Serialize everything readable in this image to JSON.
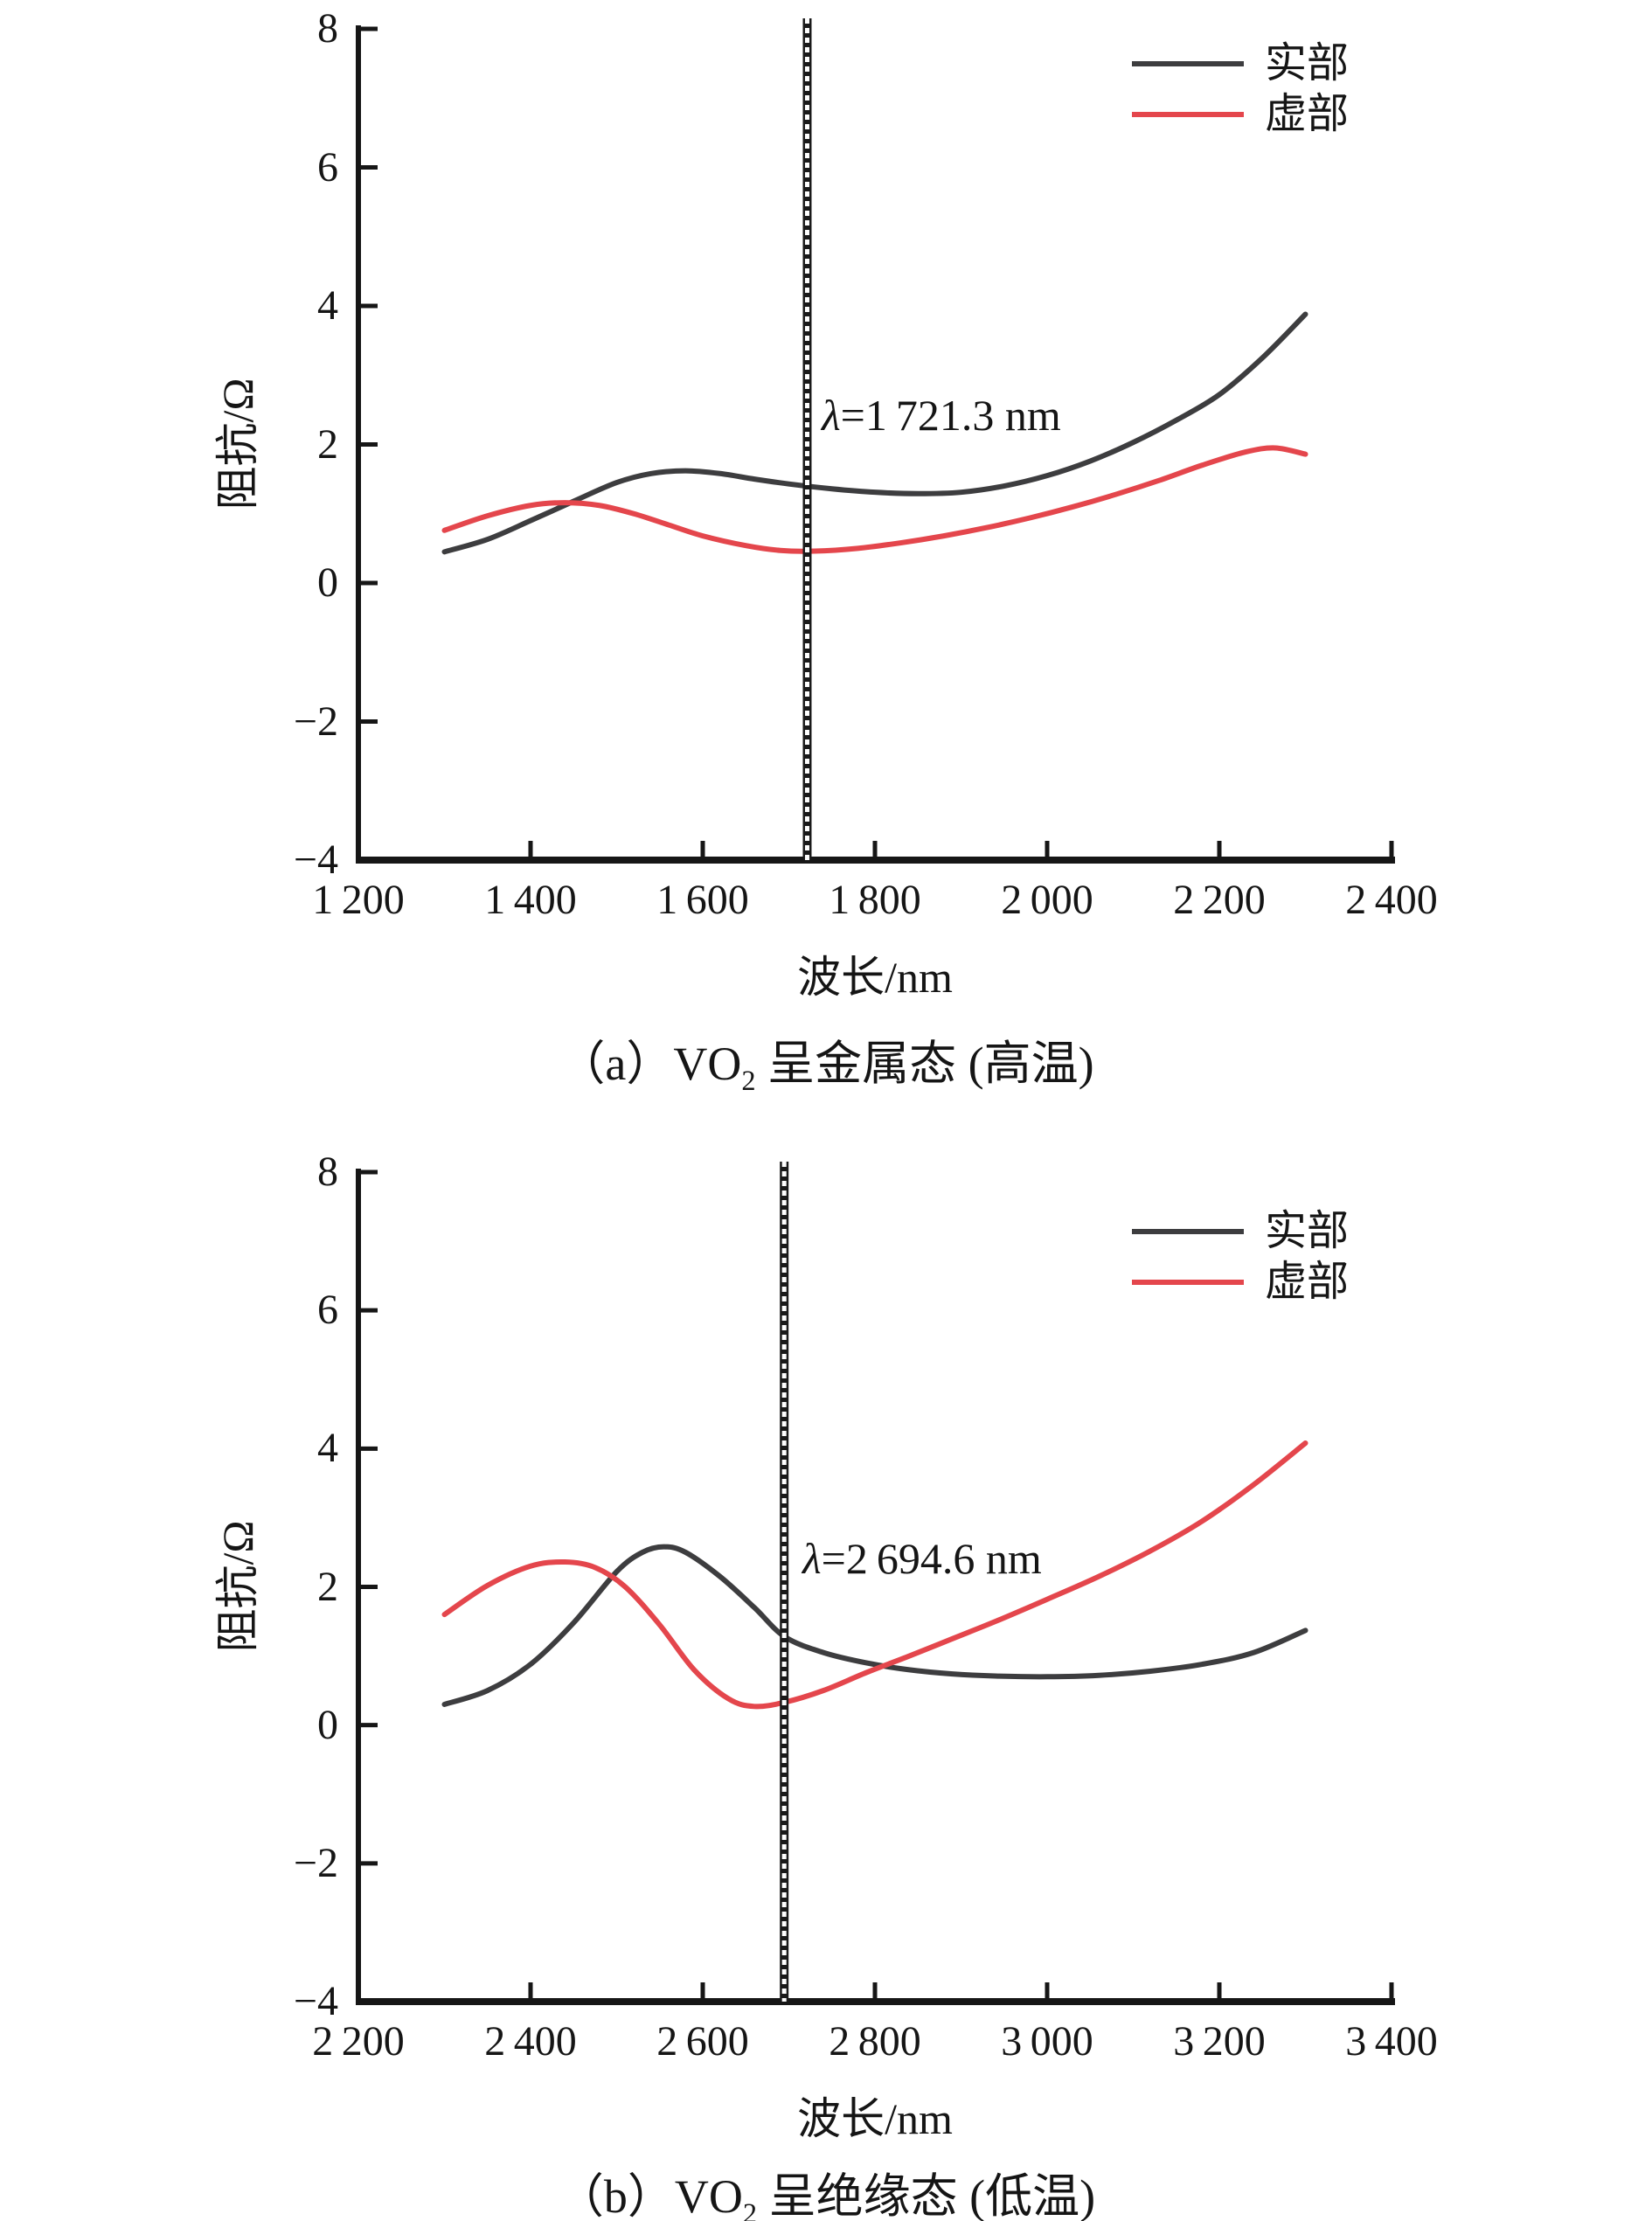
{
  "colors": {
    "real": "#3d3d3f",
    "imag": "#e4464c",
    "axis": "#161616",
    "text": "#151515",
    "marker_fill": "#1a1a1a",
    "marker_dash": "#ffffff"
  },
  "chart_data": [
    {
      "type": "line",
      "panel": "a",
      "xlabel": "波长/nm",
      "ylabel": "阻抗/Ω",
      "caption": {
        "prefix": "（a）VO",
        "sub": "2",
        "suffix": " 呈金属态 (高温)"
      },
      "legend": [
        {
          "key": "real",
          "label": "实部"
        },
        {
          "key": "imag",
          "label": "虚部"
        }
      ],
      "legend_position": "top-right",
      "grid": false,
      "axes": {
        "x_min": 1200,
        "x_max": 2400,
        "y_min": -4,
        "y_max": 8,
        "x_ticks": [
          {
            "v": 1200,
            "label": "1 200"
          },
          {
            "v": 1400,
            "label": "1 400"
          },
          {
            "v": 1600,
            "label": "1 600"
          },
          {
            "v": 1800,
            "label": "1 800"
          },
          {
            "v": 2000,
            "label": "2 000"
          },
          {
            "v": 2200,
            "label": "2 200"
          },
          {
            "v": 2400,
            "label": "2 400"
          }
        ],
        "y_ticks": [
          {
            "v": 8,
            "label": "8"
          },
          {
            "v": 6,
            "label": "6"
          },
          {
            "v": 4,
            "label": "4"
          },
          {
            "v": 2,
            "label": "2"
          },
          {
            "v": 0,
            "label": "0"
          },
          {
            "v": -2,
            "label": "−2"
          },
          {
            "v": -4,
            "label": "−4"
          }
        ]
      },
      "marker": {
        "x": 1721.3,
        "label": "λ=1 721.3 nm"
      },
      "series": [
        {
          "name": "实部",
          "color_key": "real",
          "points": [
            [
              1300,
              0.45
            ],
            [
              1350,
              0.63
            ],
            [
              1400,
              0.9
            ],
            [
              1450,
              1.18
            ],
            [
              1500,
              1.45
            ],
            [
              1540,
              1.58
            ],
            [
              1580,
              1.62
            ],
            [
              1620,
              1.58
            ],
            [
              1660,
              1.5
            ],
            [
              1700,
              1.43
            ],
            [
              1750,
              1.36
            ],
            [
              1800,
              1.31
            ],
            [
              1850,
              1.29
            ],
            [
              1900,
              1.31
            ],
            [
              1950,
              1.4
            ],
            [
              2000,
              1.55
            ],
            [
              2050,
              1.76
            ],
            [
              2100,
              2.03
            ],
            [
              2150,
              2.35
            ],
            [
              2200,
              2.72
            ],
            [
              2250,
              3.25
            ],
            [
              2300,
              3.88
            ]
          ]
        },
        {
          "name": "虚部",
          "color_key": "imag",
          "points": [
            [
              1300,
              0.76
            ],
            [
              1350,
              0.97
            ],
            [
              1400,
              1.12
            ],
            [
              1440,
              1.16
            ],
            [
              1480,
              1.12
            ],
            [
              1520,
              1.0
            ],
            [
              1560,
              0.84
            ],
            [
              1600,
              0.68
            ],
            [
              1650,
              0.54
            ],
            [
              1690,
              0.47
            ],
            [
              1730,
              0.46
            ],
            [
              1780,
              0.5
            ],
            [
              1830,
              0.58
            ],
            [
              1880,
              0.68
            ],
            [
              1930,
              0.8
            ],
            [
              1980,
              0.94
            ],
            [
              2030,
              1.1
            ],
            [
              2080,
              1.28
            ],
            [
              2130,
              1.48
            ],
            [
              2180,
              1.7
            ],
            [
              2230,
              1.89
            ],
            [
              2265,
              1.95
            ],
            [
              2300,
              1.86
            ]
          ]
        }
      ]
    },
    {
      "type": "line",
      "panel": "b",
      "xlabel": "波长/nm",
      "ylabel": "阻抗/Ω",
      "caption": {
        "prefix": "（b）VO",
        "sub": "2",
        "suffix": " 呈绝缘态 (低温)"
      },
      "legend": [
        {
          "key": "real",
          "label": "实部"
        },
        {
          "key": "imag",
          "label": "虚部"
        }
      ],
      "legend_position": "top-right",
      "grid": false,
      "axes": {
        "x_min": 2200,
        "x_max": 3400,
        "y_min": -4,
        "y_max": 8,
        "x_ticks": [
          {
            "v": 2200,
            "label": "2 200"
          },
          {
            "v": 2400,
            "label": "2 400"
          },
          {
            "v": 2600,
            "label": "2 600"
          },
          {
            "v": 2800,
            "label": "2 800"
          },
          {
            "v": 3000,
            "label": "3 000"
          },
          {
            "v": 3200,
            "label": "3 200"
          },
          {
            "v": 3400,
            "label": "3 400"
          }
        ],
        "y_ticks": [
          {
            "v": 8,
            "label": "8"
          },
          {
            "v": 6,
            "label": "6"
          },
          {
            "v": 4,
            "label": "4"
          },
          {
            "v": 2,
            "label": "2"
          },
          {
            "v": 0,
            "label": "0"
          },
          {
            "v": -2,
            "label": "−2"
          },
          {
            "v": -4,
            "label": "−4"
          }
        ]
      },
      "marker": {
        "x": 2694.6,
        "label": "λ=2 694.6 nm"
      },
      "series": [
        {
          "name": "实部",
          "color_key": "real",
          "points": [
            [
              2300,
              0.3
            ],
            [
              2350,
              0.5
            ],
            [
              2400,
              0.88
            ],
            [
              2450,
              1.48
            ],
            [
              2500,
              2.22
            ],
            [
              2530,
              2.5
            ],
            [
              2555,
              2.58
            ],
            [
              2580,
              2.5
            ],
            [
              2620,
              2.15
            ],
            [
              2660,
              1.7
            ],
            [
              2695,
              1.28
            ],
            [
              2740,
              1.05
            ],
            [
              2790,
              0.9
            ],
            [
              2840,
              0.8
            ],
            [
              2890,
              0.74
            ],
            [
              2940,
              0.71
            ],
            [
              3000,
              0.7
            ],
            [
              3060,
              0.72
            ],
            [
              3120,
              0.78
            ],
            [
              3180,
              0.88
            ],
            [
              3240,
              1.05
            ],
            [
              3300,
              1.37
            ]
          ]
        },
        {
          "name": "虚部",
          "color_key": "imag",
          "points": [
            [
              2300,
              1.6
            ],
            [
              2350,
              2.02
            ],
            [
              2400,
              2.3
            ],
            [
              2440,
              2.36
            ],
            [
              2475,
              2.28
            ],
            [
              2510,
              2.0
            ],
            [
              2550,
              1.45
            ],
            [
              2590,
              0.8
            ],
            [
              2630,
              0.38
            ],
            [
              2660,
              0.27
            ],
            [
              2695,
              0.33
            ],
            [
              2740,
              0.5
            ],
            [
              2790,
              0.76
            ],
            [
              2840,
              1.0
            ],
            [
              2890,
              1.25
            ],
            [
              2940,
              1.5
            ],
            [
              3000,
              1.82
            ],
            [
              3060,
              2.15
            ],
            [
              3120,
              2.52
            ],
            [
              3180,
              2.95
            ],
            [
              3240,
              3.48
            ],
            [
              3300,
              4.08
            ]
          ]
        }
      ]
    }
  ]
}
